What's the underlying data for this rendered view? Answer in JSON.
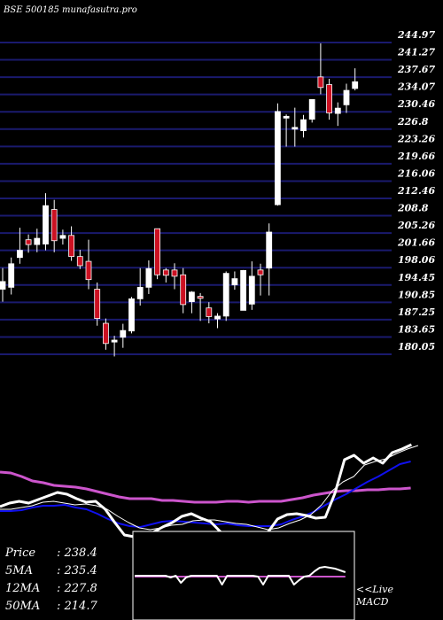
{
  "chart_data": {
    "type": "candlestick",
    "title": "BSE 500185 munafasutra.pro",
    "ylim": [
      180.05,
      244.97
    ],
    "y_ticks": [
      "244.97",
      "241.27",
      "237.67",
      "234.07",
      "230.46",
      "226.8",
      "223.26",
      "219.66",
      "216.06",
      "212.46",
      "208.8",
      "205.26",
      "201.66",
      "198.06",
      "194.45",
      "190.85",
      "187.25",
      "183.65",
      "180.05"
    ],
    "candles": [
      {
        "o": 193.6,
        "h": 198.0,
        "l": 191.0,
        "c": 195.2,
        "up": true
      },
      {
        "o": 194.0,
        "h": 200.2,
        "l": 192.5,
        "c": 198.9,
        "up": true
      },
      {
        "o": 200.2,
        "h": 206.4,
        "l": 198.9,
        "c": 201.7,
        "up": true
      },
      {
        "o": 203.9,
        "h": 205.0,
        "l": 201.2,
        "c": 202.9,
        "up": false
      },
      {
        "o": 202.9,
        "h": 206.2,
        "l": 201.3,
        "c": 204.2,
        "up": true
      },
      {
        "o": 203.0,
        "h": 213.6,
        "l": 201.7,
        "c": 211.0,
        "up": true
      },
      {
        "o": 210.2,
        "h": 212.2,
        "l": 201.3,
        "c": 203.7,
        "up": false
      },
      {
        "o": 204.2,
        "h": 206.0,
        "l": 202.9,
        "c": 204.8,
        "up": true
      },
      {
        "o": 204.8,
        "h": 206.7,
        "l": 199.5,
        "c": 200.4,
        "up": false
      },
      {
        "o": 200.4,
        "h": 201.8,
        "l": 197.8,
        "c": 198.5,
        "up": false
      },
      {
        "o": 199.4,
        "h": 203.9,
        "l": 193.6,
        "c": 195.6,
        "up": false
      },
      {
        "o": 193.6,
        "h": 195.0,
        "l": 186.0,
        "c": 187.5,
        "up": false
      },
      {
        "o": 186.5,
        "h": 187.5,
        "l": 181.0,
        "c": 182.3,
        "up": false
      },
      {
        "o": 182.6,
        "h": 183.9,
        "l": 179.6,
        "c": 183.0,
        "up": true
      },
      {
        "o": 183.6,
        "h": 186.4,
        "l": 181.4,
        "c": 185.0,
        "up": true
      },
      {
        "o": 184.9,
        "h": 192.0,
        "l": 184.4,
        "c": 191.6,
        "up": true
      },
      {
        "o": 191.6,
        "h": 198.0,
        "l": 190.2,
        "c": 194.0,
        "up": true
      },
      {
        "o": 194.0,
        "h": 199.6,
        "l": 192.6,
        "c": 197.9,
        "up": true
      },
      {
        "o": 206.2,
        "h": 206.2,
        "l": 195.7,
        "c": 196.6,
        "up": false
      },
      {
        "o": 196.5,
        "h": 198.0,
        "l": 195.0,
        "c": 197.6,
        "up": false
      },
      {
        "o": 196.3,
        "h": 199.0,
        "l": 193.6,
        "c": 197.6,
        "up": false
      },
      {
        "o": 196.6,
        "h": 198.0,
        "l": 188.6,
        "c": 190.4,
        "up": false
      },
      {
        "o": 191.0,
        "h": 193.2,
        "l": 188.6,
        "c": 193.0,
        "up": true
      },
      {
        "o": 192.1,
        "h": 192.8,
        "l": 187.0,
        "c": 191.7,
        "up": false
      },
      {
        "o": 189.7,
        "h": 190.9,
        "l": 186.5,
        "c": 187.9,
        "up": false
      },
      {
        "o": 187.4,
        "h": 188.6,
        "l": 185.5,
        "c": 188.0,
        "up": true
      },
      {
        "o": 188.0,
        "h": 197.3,
        "l": 187.0,
        "c": 196.9,
        "up": true
      },
      {
        "o": 194.5,
        "h": 197.3,
        "l": 193.5,
        "c": 195.8,
        "up": true
      },
      {
        "o": 189.2,
        "h": 197.6,
        "l": 189.2,
        "c": 197.5,
        "up": true
      },
      {
        "o": 190.5,
        "h": 199.4,
        "l": 189.3,
        "c": 196.3,
        "up": true
      },
      {
        "o": 197.6,
        "h": 198.9,
        "l": 192.3,
        "c": 196.6,
        "up": false
      },
      {
        "o": 198.0,
        "h": 207.3,
        "l": 192.3,
        "c": 205.5,
        "up": true
      },
      {
        "o": 211.2,
        "h": 232.3,
        "l": 211.0,
        "c": 230.6,
        "up": true
      },
      {
        "o": 229.4,
        "h": 230.0,
        "l": 223.3,
        "c": 229.6,
        "up": true
      },
      {
        "o": 227.0,
        "h": 231.4,
        "l": 223.3,
        "c": 227.3,
        "up": true
      },
      {
        "o": 226.6,
        "h": 229.9,
        "l": 225.2,
        "c": 228.9,
        "up": true
      },
      {
        "o": 229.0,
        "h": 233.0,
        "l": 228.3,
        "c": 233.1,
        "up": true
      },
      {
        "o": 237.8,
        "h": 244.8,
        "l": 234.2,
        "c": 235.6,
        "up": false
      },
      {
        "o": 236.2,
        "h": 237.4,
        "l": 228.9,
        "c": 230.3,
        "up": false
      },
      {
        "o": 230.2,
        "h": 232.5,
        "l": 227.6,
        "c": 231.3,
        "up": true
      },
      {
        "o": 232.0,
        "h": 236.4,
        "l": 230.3,
        "c": 235.0,
        "up": true
      },
      {
        "o": 235.4,
        "h": 239.6,
        "l": 235.0,
        "c": 236.8,
        "up": true
      }
    ],
    "stats": [
      {
        "label": "Price",
        "value": "238.4"
      },
      {
        "label": "5MA",
        "value": "235.4"
      },
      {
        "label": "12MA",
        "value": "227.8"
      },
      {
        "label": "50MA",
        "value": "214.7"
      }
    ],
    "live_label": [
      "<<Live",
      "MACD"
    ],
    "ma_chart": {
      "price": [
        572,
        568,
        566,
        568,
        564,
        560,
        556,
        558,
        563,
        567,
        566,
        575,
        590,
        604,
        606,
        604,
        601,
        595,
        590,
        583,
        580,
        585,
        589,
        600,
        612,
        620,
        618,
        610,
        601,
        586,
        581,
        580,
        582,
        585,
        584,
        557,
        519,
        514,
        523,
        517,
        523,
        511,
        507,
        502
      ],
      "ma5": [
        575,
        575,
        573,
        571,
        567,
        566,
        568,
        570,
        569,
        571,
        575,
        583,
        590,
        596,
        598,
        596,
        593,
        592,
        588,
        587,
        587,
        589,
        591,
        592,
        595,
        598,
        596,
        591,
        587,
        581,
        570,
        554,
        544,
        538,
        525,
        521,
        518,
        512,
        507,
        503
      ],
      "ma12": [
        577,
        577,
        576,
        573,
        571,
        571,
        570,
        573,
        575,
        580,
        586,
        591,
        594,
        595,
        592,
        589,
        588,
        589,
        590,
        591,
        592,
        591,
        593,
        594,
        594,
        594,
        592,
        587,
        583,
        578,
        571,
        564,
        558,
        551,
        544,
        538,
        531,
        524,
        521
      ],
      "ma50": [
        533,
        534,
        538,
        543,
        545,
        548,
        549,
        550,
        552,
        555,
        558,
        561,
        563,
        563,
        563,
        565,
        565,
        566,
        567,
        567,
        567,
        566,
        566,
        567,
        566,
        566,
        566,
        564,
        562,
        559,
        557,
        555,
        554,
        554,
        553,
        553,
        552,
        552,
        551
      ]
    },
    "macd_panel": {
      "macd": [
        650,
        650,
        650,
        650,
        650,
        650,
        650,
        652,
        650,
        658,
        652,
        650,
        650,
        650,
        650,
        650,
        650,
        660,
        650,
        650,
        650,
        650,
        650,
        650,
        651,
        660,
        650,
        650,
        650,
        650,
        650,
        660,
        655,
        651,
        650,
        645,
        641,
        640,
        641,
        642,
        644,
        646
      ],
      "signal": [
        651,
        651,
        651,
        651,
        651,
        651,
        651,
        651,
        651,
        651,
        651,
        651,
        651,
        651,
        651,
        651,
        651,
        651,
        651,
        651,
        651,
        651,
        651,
        651,
        651,
        651,
        651,
        651,
        651,
        651,
        651,
        651,
        651,
        651,
        651,
        651,
        651,
        651,
        651,
        651,
        651,
        651
      ]
    },
    "colors": {
      "up": "#ffffff",
      "down": "#cc1122",
      "grid": "#1a1a6e",
      "price_line": "#ffffff",
      "ma5": "#ffffff",
      "ma12": "#1010ee",
      "ma50": "#cc55cc",
      "macd": "#ffffff",
      "signal": "#cc55cc"
    }
  }
}
